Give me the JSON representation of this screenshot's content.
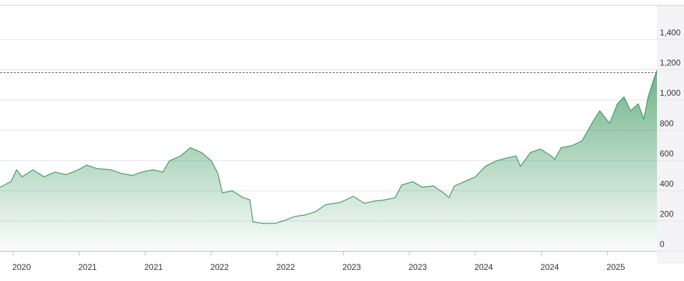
{
  "chart_data": {
    "type": "area",
    "color": "#3f9a62",
    "x": [
      0,
      1.0,
      1.5,
      2.0,
      3.0,
      4.0,
      5.0,
      6.0,
      7.1,
      7.9,
      8.8,
      10.1,
      11.0,
      12.0,
      12.9,
      13.9,
      14.8,
      15.4,
      16.4,
      17.3,
      18.3,
      19.2,
      19.8,
      20.2,
      21.1,
      22.1,
      22.7,
      23.0,
      23.9,
      25.0,
      25.8,
      26.8,
      27.7,
      28.7,
      29.6,
      30.9,
      32.1,
      33.1,
      34.0,
      35.0,
      35.9,
      36.5,
      37.5,
      38.4,
      39.4,
      40.3,
      40.8,
      41.3,
      42.2,
      43.2,
      44.1,
      45.1,
      46.0,
      46.9,
      47.3,
      48.2,
      49.1,
      50.1,
      50.4,
      51.0,
      52.0,
      52.9,
      53.9,
      54.5,
      55.4,
      56.1,
      56.7,
      57.3,
      58.0,
      58.5,
      58.9,
      59.4,
      59.7
    ],
    "values": [
      423,
      460,
      538,
      492,
      538,
      492,
      524,
      506,
      538,
      570,
      547,
      538,
      515,
      501,
      524,
      538,
      524,
      598,
      630,
      685,
      653,
      598,
      515,
      386,
      400,
      354,
      340,
      193,
      184,
      184,
      202,
      230,
      239,
      262,
      308,
      322,
      363,
      317,
      331,
      340,
      354,
      437,
      460,
      423,
      432,
      386,
      354,
      432,
      460,
      492,
      561,
      598,
      616,
      630,
      561,
      653,
      676,
      630,
      607,
      685,
      699,
      731,
      860,
      929,
      846,
      975,
      1021,
      929,
      975,
      874,
      1021,
      1136,
      1196
    ],
    "reference_line": 1182,
    "xlim": [
      0,
      59.7
    ],
    "xticks": [
      {
        "value": 1.2,
        "label": "2020"
      },
      {
        "value": 7.2,
        "label": "2021"
      },
      {
        "value": 13.2,
        "label": "2021"
      },
      {
        "value": 19.2,
        "label": "2022"
      },
      {
        "value": 25.2,
        "label": "2022"
      },
      {
        "value": 31.2,
        "label": "2023"
      },
      {
        "value": 37.2,
        "label": "2023"
      },
      {
        "value": 43.2,
        "label": "2024"
      },
      {
        "value": 49.2,
        "label": "2024"
      },
      {
        "value": 55.2,
        "label": "2025"
      }
    ],
    "ylim": [
      0,
      1630
    ],
    "yticks": [
      0,
      200,
      400,
      600,
      800,
      {
        "value": 1000,
        "label": "1,000"
      },
      {
        "value": 1200,
        "label": "1,200"
      },
      {
        "value": 1400,
        "label": "1,400"
      }
    ],
    "grid": true
  }
}
